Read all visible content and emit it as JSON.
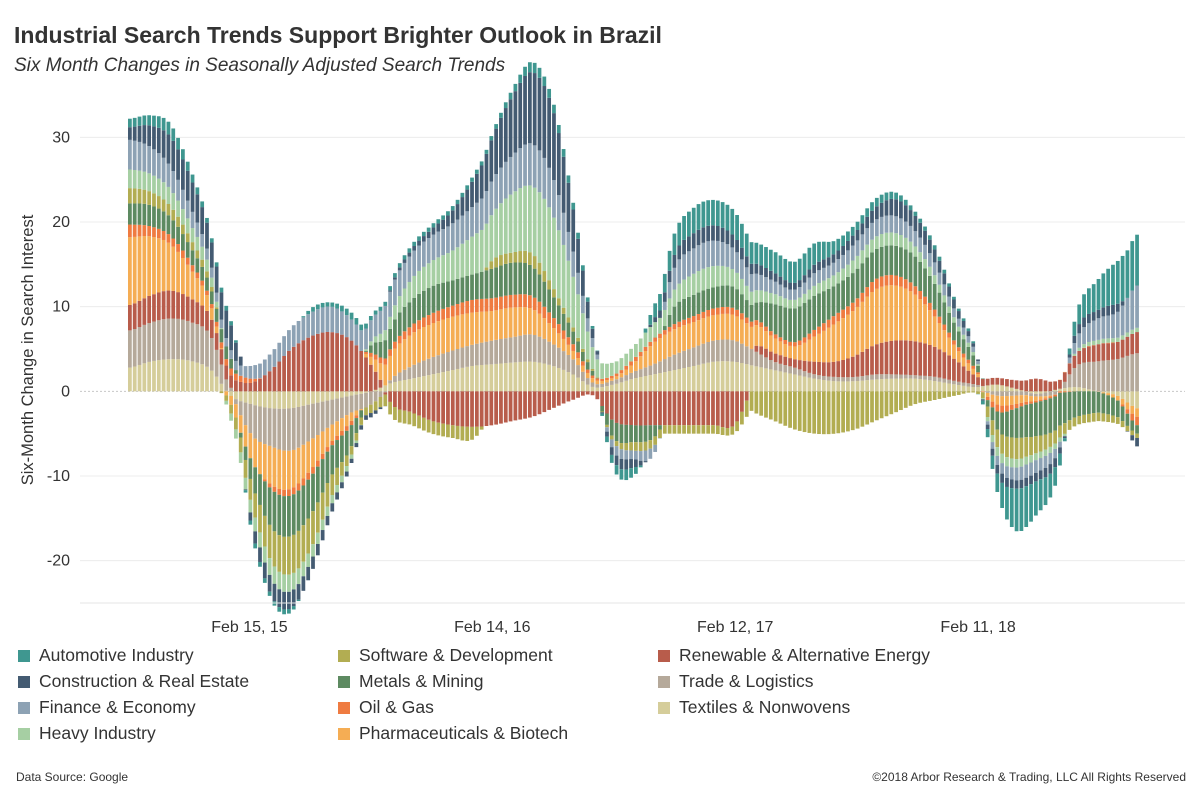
{
  "title": "Industrial Search Trends Support Brighter Outlook in Brazil",
  "subtitle": "Six Month Changes in Seasonally Adjusted Search Trends",
  "source": "Data Source: Google",
  "copyright": "©2018 Arbor Research & Trading, LLC All Rights Reserved",
  "chart_data": {
    "type": "bar",
    "stacked": true,
    "title": "Industrial Search Trends Support Brighter Outlook in Brazil",
    "subtitle": "Six Month Changes in Seasonally Adjusted Search Trends",
    "ylabel": "Six-Month Change in Search Interest",
    "xlabel": "",
    "ylim": [
      -25,
      35
    ],
    "y_ticks": [
      30,
      20,
      10,
      0,
      -10,
      -20
    ],
    "grid": "horizontal",
    "legend_position": "bottom",
    "x_tick_labels": [
      "Feb 15, 15",
      "Feb 14, 16",
      "Feb 12, 17",
      "Feb 11, 18"
    ],
    "x": [
      "2014-08",
      "2014-09",
      "2014-10",
      "2014-11",
      "2014-12",
      "2015-01",
      "2015-02",
      "2015-03",
      "2015-04",
      "2015-05",
      "2015-06",
      "2015-07",
      "2015-08",
      "2015-09",
      "2015-10",
      "2015-11",
      "2015-12",
      "2016-01",
      "2016-02",
      "2016-03",
      "2016-04",
      "2016-05",
      "2016-06",
      "2016-07",
      "2016-08",
      "2016-09",
      "2016-10",
      "2016-11",
      "2016-12",
      "2017-01",
      "2017-02",
      "2017-03",
      "2017-04",
      "2017-05",
      "2017-06",
      "2017-07",
      "2017-08",
      "2017-09",
      "2017-10",
      "2017-11",
      "2017-12",
      "2018-01",
      "2018-02",
      "2018-03",
      "2018-04",
      "2018-05",
      "2018-06",
      "2018-07",
      "2018-08",
      "2018-09",
      "2018-10"
    ],
    "series": [
      {
        "name": "Textiles & Nonwovens",
        "color": "#d5cd9a",
        "values": [
          2.8,
          3.5,
          3.8,
          3.6,
          2.6,
          -0.5,
          -1.5,
          -2.0,
          -2.0,
          -1.5,
          -1.0,
          -0.5,
          0.0,
          1.0,
          1.5,
          2.0,
          2.5,
          3.0,
          3.2,
          3.4,
          3.5,
          3.0,
          2.0,
          0.5,
          0.8,
          1.5,
          2.0,
          2.5,
          3.0,
          3.5,
          3.5,
          3.0,
          2.5,
          2.0,
          1.5,
          1.2,
          1.2,
          1.4,
          1.5,
          1.5,
          1.2,
          0.8,
          0.5,
          0.8,
          0.3,
          -0.3,
          0.2,
          0.5,
          0.0,
          -0.5,
          -2.0
        ]
      },
      {
        "name": "Trade & Logistics",
        "color": "#b5a99a",
        "values": [
          4.4,
          4.6,
          4.8,
          4.6,
          4.0,
          0.5,
          -3.5,
          -4.5,
          -5.0,
          -4.2,
          -3.0,
          -2.0,
          -1.5,
          0.5,
          1.5,
          2.0,
          2.3,
          2.5,
          2.8,
          3.0,
          3.2,
          2.6,
          1.8,
          0.5,
          0.5,
          0.8,
          1.2,
          1.8,
          2.2,
          2.5,
          2.5,
          1.8,
          1.0,
          0.8,
          0.5,
          0.5,
          0.5,
          0.6,
          0.5,
          0.4,
          0.5,
          0.4,
          0.3,
          -0.5,
          -0.5,
          -0.3,
          -0.3,
          2.5,
          3.5,
          3.8,
          4.5
        ]
      },
      {
        "name": "Renewable & Alternative Energy",
        "color": "#b85c4b",
        "values": [
          3.0,
          3.2,
          3.3,
          2.8,
          2.2,
          1.5,
          1.0,
          2.5,
          5.0,
          6.5,
          7.0,
          6.0,
          3.0,
          -1.5,
          -2.5,
          -3.5,
          -4.0,
          -4.2,
          -4.0,
          -3.5,
          -3.0,
          -2.0,
          -1.0,
          -0.5,
          -3.5,
          -4.0,
          -4.0,
          -4.0,
          -4.0,
          -4.0,
          -4.0,
          0.5,
          1.0,
          1.0,
          1.5,
          1.8,
          2.5,
          3.5,
          4.0,
          4.0,
          3.5,
          2.5,
          1.0,
          0.8,
          1.0,
          1.5,
          1.0,
          1.5,
          2.0,
          2.0,
          2.5
        ]
      },
      {
        "name": "Pharmaceuticals & Biotech",
        "color": "#f5ad54",
        "values": [
          8.0,
          7.0,
          5.5,
          3.5,
          1.5,
          -1.0,
          -3.0,
          -4.5,
          -4.5,
          -3.5,
          -2.0,
          -1.0,
          1.0,
          3.0,
          3.8,
          4.0,
          4.0,
          3.8,
          3.5,
          3.5,
          3.0,
          2.0,
          1.0,
          0.5,
          0.3,
          1.0,
          2.5,
          3.0,
          3.0,
          3.0,
          3.0,
          2.5,
          1.8,
          1.5,
          3.0,
          4.5,
          5.5,
          6.5,
          6.5,
          5.5,
          3.5,
          1.5,
          0.5,
          -1.0,
          -1.0,
          -0.5,
          0.0,
          0.0,
          0.0,
          -0.5,
          -1.0
        ]
      },
      {
        "name": "Oil & Gas",
        "color": "#ef7b41",
        "values": [
          1.5,
          1.2,
          1.0,
          0.8,
          0.5,
          0.8,
          0.5,
          -0.5,
          -0.8,
          -0.8,
          -0.5,
          -0.5,
          0.5,
          0.8,
          1.0,
          1.2,
          1.3,
          1.5,
          1.5,
          1.5,
          1.5,
          1.2,
          0.8,
          0.3,
          0.3,
          0.5,
          0.5,
          0.6,
          0.7,
          0.8,
          0.8,
          0.6,
          0.5,
          0.5,
          0.8,
          1.0,
          1.0,
          1.2,
          1.2,
          1.0,
          0.8,
          0.5,
          0.3,
          -0.8,
          -0.5,
          -0.2,
          -0.2,
          0.0,
          0.0,
          0.0,
          -1.0
        ]
      },
      {
        "name": "Metals & Mining",
        "color": "#5d8a61",
        "values": [
          2.5,
          2.5,
          2.2,
          1.8,
          1.5,
          1.2,
          -2.5,
          -4.5,
          -4.8,
          -4.5,
          -3.5,
          -2.5,
          1.0,
          2.5,
          3.0,
          3.2,
          3.0,
          3.0,
          3.5,
          3.8,
          3.5,
          2.5,
          1.5,
          0.5,
          -2.0,
          -2.0,
          -1.5,
          2.0,
          2.5,
          2.5,
          2.5,
          2.0,
          3.5,
          4.0,
          4.0,
          3.5,
          3.5,
          3.5,
          3.5,
          3.5,
          3.0,
          2.0,
          1.0,
          -2.0,
          -3.5,
          -4.0,
          -4.0,
          -3.0,
          -2.5,
          -2.0,
          -1.0
        ]
      },
      {
        "name": "Software & Development",
        "color": "#b2ad52",
        "values": [
          1.8,
          1.6,
          1.3,
          1.0,
          0.6,
          -1.0,
          -2.5,
          -4.0,
          -4.5,
          -4.0,
          -2.5,
          -1.0,
          -1.0,
          -1.5,
          -1.5,
          -1.5,
          -1.5,
          -1.5,
          1.0,
          1.2,
          1.5,
          1.0,
          0.5,
          0.2,
          -0.5,
          -1.0,
          -1.0,
          -1.0,
          -1.0,
          -1.0,
          -1.0,
          -2.5,
          -3.5,
          -4.5,
          -5.0,
          -5.0,
          -4.5,
          -3.5,
          -2.5,
          -1.5,
          -1.0,
          -0.5,
          -0.2,
          -2.0,
          -2.5,
          -2.0,
          -1.5,
          -1.0,
          -1.0,
          -0.8,
          -0.5
        ]
      },
      {
        "name": "Heavy Industry",
        "color": "#a6cfa3",
        "values": [
          2.2,
          2.1,
          2.0,
          1.7,
          1.2,
          -0.8,
          -1.5,
          -2.0,
          -2.0,
          -1.5,
          -1.0,
          -0.5,
          0.5,
          1.5,
          2.5,
          3.0,
          3.5,
          4.5,
          5.5,
          7.0,
          8.0,
          8.5,
          6.0,
          2.5,
          1.5,
          1.5,
          1.8,
          2.0,
          2.5,
          2.5,
          2.0,
          1.5,
          1.2,
          1.0,
          1.2,
          1.3,
          1.5,
          1.5,
          1.5,
          1.2,
          1.0,
          0.6,
          0.3,
          -1.0,
          -1.0,
          -0.8,
          -0.6,
          0.3,
          0.5,
          0.5,
          0.5
        ]
      },
      {
        "name": "Finance & Economy",
        "color": "#8da2b4",
        "values": [
          3.5,
          3.2,
          2.7,
          2.0,
          1.2,
          1.0,
          1.5,
          2.0,
          2.5,
          2.8,
          3.0,
          2.5,
          2.5,
          3.0,
          3.0,
          3.0,
          3.2,
          3.5,
          4.0,
          4.5,
          5.0,
          4.5,
          3.0,
          1.0,
          -1.0,
          -1.0,
          -1.0,
          2.5,
          3.0,
          3.0,
          2.5,
          2.0,
          1.5,
          1.2,
          1.5,
          1.5,
          1.8,
          2.0,
          2.0,
          1.8,
          1.5,
          1.0,
          0.5,
          -1.0,
          -1.5,
          -1.5,
          -1.0,
          1.5,
          2.5,
          3.0,
          5.0
        ]
      },
      {
        "name": "Construction & Real Estate",
        "color": "#445b72",
        "values": [
          1.5,
          2.5,
          3.5,
          3.5,
          3.0,
          3.0,
          -1.0,
          -2.0,
          -2.0,
          -1.5,
          -1.0,
          -0.5,
          -0.5,
          0.2,
          0.5,
          0.8,
          1.5,
          3.0,
          5.0,
          7.0,
          8.5,
          8.0,
          5.0,
          1.0,
          -1.0,
          -1.0,
          0.5,
          1.5,
          1.8,
          1.8,
          1.5,
          1.2,
          1.0,
          0.8,
          1.0,
          1.0,
          1.2,
          1.5,
          2.0,
          1.8,
          1.5,
          1.0,
          0.3,
          -1.0,
          -1.0,
          -1.0,
          -1.0,
          1.0,
          1.0,
          1.0,
          -1.0
        ]
      },
      {
        "name": "Automotive Industry",
        "color": "#3f9790",
        "values": [
          1.0,
          1.2,
          1.5,
          1.0,
          0.5,
          0.5,
          -0.5,
          -0.5,
          -0.5,
          0.5,
          0.5,
          0.8,
          0.5,
          0.5,
          0.5,
          0.5,
          0.5,
          0.5,
          0.5,
          0.8,
          1.2,
          1.0,
          0.8,
          0.3,
          -1.0,
          -1.0,
          1.5,
          2.5,
          3.0,
          3.0,
          3.0,
          2.5,
          2.5,
          2.5,
          2.5,
          1.5,
          1.0,
          1.0,
          0.8,
          0.5,
          0.5,
          0.3,
          0.1,
          -2.0,
          -5.0,
          -4.0,
          -2.0,
          2.0,
          3.5,
          5.0,
          6.0
        ]
      }
    ]
  },
  "legend": {
    "columns": [
      [
        "Automotive Industry",
        "Construction & Real Estate",
        "Finance & Economy",
        "Heavy Industry"
      ],
      [
        "Software & Development",
        "Metals & Mining",
        "Oil & Gas",
        "Pharmaceuticals & Biotech"
      ],
      [
        "Renewable & Alternative Energy",
        "Trade & Logistics",
        "Textiles & Nonwovens"
      ]
    ]
  }
}
